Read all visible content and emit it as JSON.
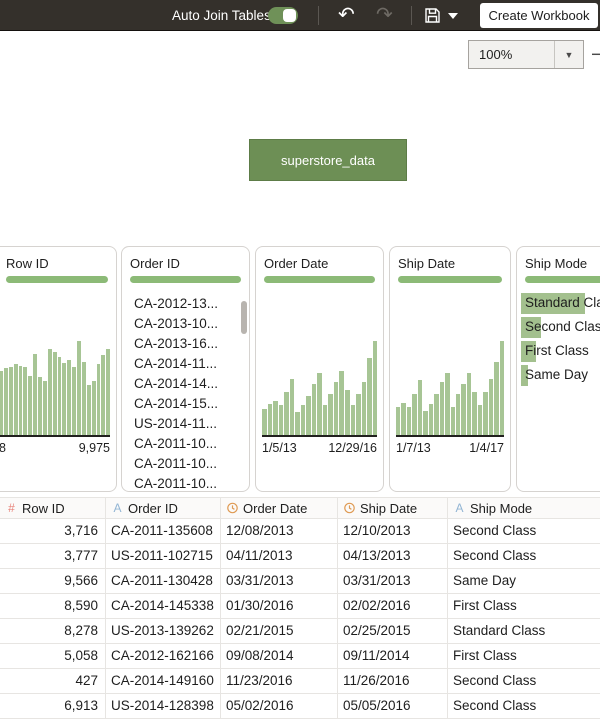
{
  "toolbar": {
    "auto_join_label": "Auto Join Tables",
    "toggle_on": true,
    "undo_icon": "↶",
    "redo_icon": "↷",
    "create_workbook_label": "Create Workbook"
  },
  "canvas": {
    "zoom_value": "100%",
    "zoom_arrow": "▼",
    "zoom_out_glyph": "−",
    "table_node_label": "superstore_data"
  },
  "colors": {
    "toolbar_bg": "#34302b",
    "accent_green": "#6d8f55",
    "summary_pill_green": "#8cba77",
    "histogram_bar_green": "#a7c595",
    "category_bar_green": "#a3c08e",
    "number_icon": "#e8837a",
    "string_icon": "#92b5d4",
    "date_icon": "#df9a53"
  },
  "field_cards": [
    {
      "title": "Row ID",
      "type": "histogram",
      "min_label": "8",
      "max_label": "9,975",
      "bars": [
        0.68,
        0.71,
        0.72,
        0.75,
        0.73,
        0.72,
        0.63,
        0.86,
        0.62,
        0.57,
        0.92,
        0.88,
        0.83,
        0.77,
        0.8,
        0.72,
        1.0,
        0.78,
        0.53,
        0.57,
        0.75,
        0.85,
        0.92
      ]
    },
    {
      "title": "Order ID",
      "type": "list",
      "has_scrollbar": true,
      "items": [
        "CA-2012-13...",
        "CA-2013-10...",
        "CA-2013-16...",
        "CA-2014-11...",
        "CA-2014-14...",
        "CA-2014-15...",
        "US-2014-11...",
        "CA-2011-10...",
        "CA-2011-10...",
        "CA-2011-10..."
      ]
    },
    {
      "title": "Order Date",
      "type": "histogram",
      "min_label": "1/5/13",
      "max_label": "12/29/16",
      "bars": [
        0.28,
        0.33,
        0.36,
        0.32,
        0.46,
        0.6,
        0.24,
        0.32,
        0.42,
        0.54,
        0.66,
        0.32,
        0.44,
        0.56,
        0.68,
        0.48,
        0.32,
        0.44,
        0.56,
        0.82,
        1.0
      ]
    },
    {
      "title": "Ship Date",
      "type": "histogram",
      "min_label": "1/7/13",
      "max_label": "1/4/17",
      "bars": [
        0.3,
        0.34,
        0.3,
        0.44,
        0.58,
        0.25,
        0.33,
        0.44,
        0.56,
        0.66,
        0.3,
        0.44,
        0.54,
        0.66,
        0.46,
        0.32,
        0.46,
        0.6,
        0.78,
        1.0
      ]
    },
    {
      "title": "Ship Mode",
      "type": "bar-list",
      "items": [
        {
          "label": "Standard Class",
          "value": 1.0
        },
        {
          "label": "Second Class",
          "value": 0.31
        },
        {
          "label": "First Class",
          "value": 0.23
        },
        {
          "label": "Same Day",
          "value": 0.11
        }
      ]
    }
  ],
  "grid": {
    "columns": [
      {
        "type": "number",
        "label": "Row ID"
      },
      {
        "type": "string",
        "label": "Order ID"
      },
      {
        "type": "date",
        "label": "Order Date"
      },
      {
        "type": "date",
        "label": "Ship Date"
      },
      {
        "type": "string",
        "label": "Ship Mode"
      }
    ],
    "rows": [
      [
        "3,716",
        "CA-2011-135608",
        "12/08/2013",
        "12/10/2013",
        "Second Class"
      ],
      [
        "3,777",
        "US-2011-102715",
        "04/11/2013",
        "04/13/2013",
        "Second Class"
      ],
      [
        "9,566",
        "CA-2011-130428",
        "03/31/2013",
        "03/31/2013",
        "Same Day"
      ],
      [
        "8,590",
        "CA-2014-145338",
        "01/30/2016",
        "02/02/2016",
        "First Class"
      ],
      [
        "8,278",
        "US-2013-139262",
        "02/21/2015",
        "02/25/2015",
        "Standard Class"
      ],
      [
        "5,058",
        "CA-2012-162166",
        "09/08/2014",
        "09/11/2014",
        "First Class"
      ],
      [
        "427",
        "CA-2014-149160",
        "11/23/2016",
        "11/26/2016",
        "Second Class"
      ],
      [
        "6,913",
        "US-2014-128398",
        "05/02/2016",
        "05/05/2016",
        "Second Class"
      ]
    ]
  }
}
